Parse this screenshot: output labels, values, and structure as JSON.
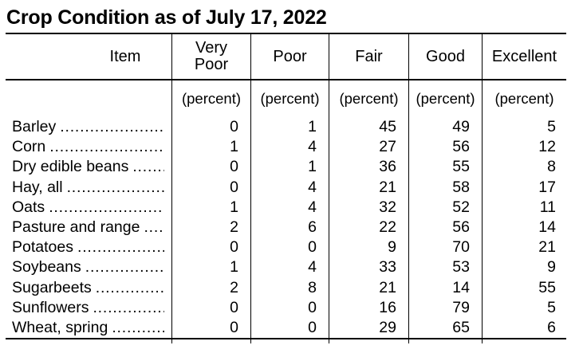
{
  "title": "Crop Condition as of July 17, 2022",
  "table": {
    "headers": [
      {
        "key": "item",
        "label": "Item"
      },
      {
        "key": "very_poor",
        "label": "Very Poor"
      },
      {
        "key": "poor",
        "label": "Poor"
      },
      {
        "key": "fair",
        "label": "Fair"
      },
      {
        "key": "good",
        "label": "Good"
      },
      {
        "key": "excellent",
        "label": "Excellent"
      }
    ],
    "unit_label": "(percent)",
    "rows": [
      {
        "item": "Barley",
        "very_poor": 0,
        "poor": 1,
        "fair": 45,
        "good": 49,
        "excellent": 5
      },
      {
        "item": "Corn",
        "very_poor": 1,
        "poor": 4,
        "fair": 27,
        "good": 56,
        "excellent": 12
      },
      {
        "item": "Dry edible beans",
        "very_poor": 0,
        "poor": 1,
        "fair": 36,
        "good": 55,
        "excellent": 8
      },
      {
        "item": "Hay, all",
        "very_poor": 0,
        "poor": 4,
        "fair": 21,
        "good": 58,
        "excellent": 17
      },
      {
        "item": "Oats",
        "very_poor": 1,
        "poor": 4,
        "fair": 32,
        "good": 52,
        "excellent": 11
      },
      {
        "item": "Pasture and range",
        "very_poor": 2,
        "poor": 6,
        "fair": 22,
        "good": 56,
        "excellent": 14
      },
      {
        "item": "Potatoes",
        "very_poor": 0,
        "poor": 0,
        "fair": 9,
        "good": 70,
        "excellent": 21
      },
      {
        "item": "Soybeans",
        "very_poor": 1,
        "poor": 4,
        "fair": 33,
        "good": 53,
        "excellent": 9
      },
      {
        "item": "Sugarbeets",
        "very_poor": 2,
        "poor": 8,
        "fair": 21,
        "good": 14,
        "excellent": 55
      },
      {
        "item": "Sunflowers",
        "very_poor": 0,
        "poor": 0,
        "fair": 16,
        "good": 79,
        "excellent": 5
      },
      {
        "item": "Wheat, spring",
        "very_poor": 0,
        "poor": 0,
        "fair": 29,
        "good": 65,
        "excellent": 6
      }
    ]
  },
  "chart_data": {
    "type": "table",
    "title": "Crop Condition as of July 17, 2022",
    "unit": "percent",
    "columns": [
      "Item",
      "Very Poor",
      "Poor",
      "Fair",
      "Good",
      "Excellent"
    ],
    "rows": [
      [
        "Barley",
        0,
        1,
        45,
        49,
        5
      ],
      [
        "Corn",
        1,
        4,
        27,
        56,
        12
      ],
      [
        "Dry edible beans",
        0,
        1,
        36,
        55,
        8
      ],
      [
        "Hay, all",
        0,
        4,
        21,
        58,
        17
      ],
      [
        "Oats",
        1,
        4,
        32,
        52,
        11
      ],
      [
        "Pasture and range",
        2,
        6,
        22,
        56,
        14
      ],
      [
        "Potatoes",
        0,
        0,
        9,
        70,
        21
      ],
      [
        "Soybeans",
        1,
        4,
        33,
        53,
        9
      ],
      [
        "Sugarbeets",
        2,
        8,
        21,
        14,
        55
      ],
      [
        "Sunflowers",
        0,
        0,
        16,
        79,
        5
      ],
      [
        "Wheat, spring",
        0,
        0,
        29,
        65,
        6
      ]
    ],
    "colors": {
      "text": "#000000",
      "background": "#ffffff",
      "rules": "#000000"
    }
  }
}
